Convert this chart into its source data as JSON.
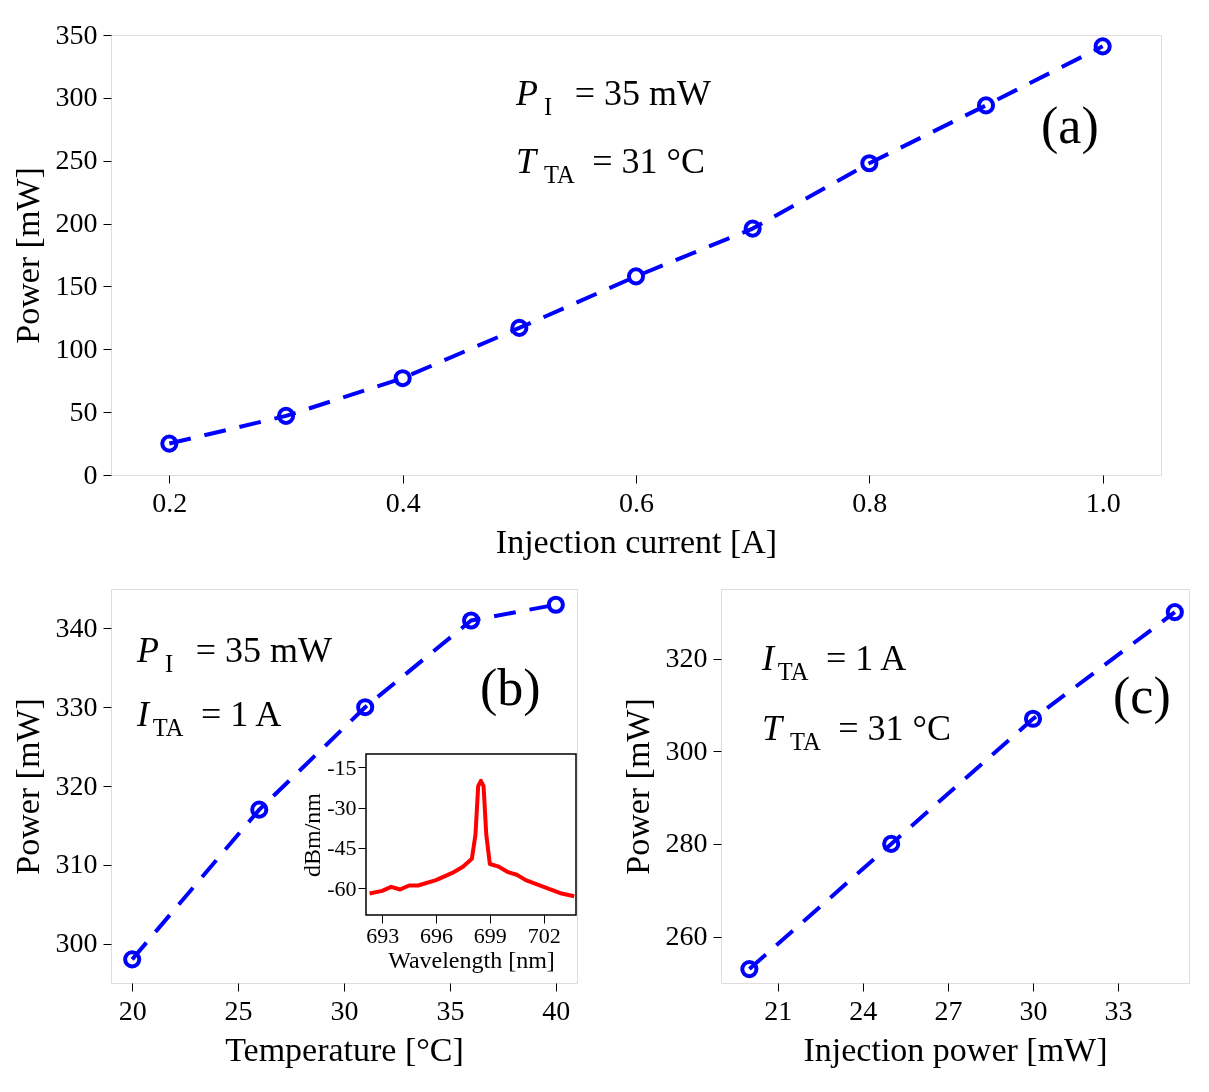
{
  "chart_data": [
    {
      "type": "line",
      "xlabel": "Injection current [A]",
      "ylabel": "Power [mW]",
      "x": [
        0.2,
        0.3,
        0.4,
        0.5,
        0.6,
        0.7,
        0.8,
        0.9,
        1.0
      ],
      "series": [
        {
          "color": "#0000ff",
          "values": [
            25,
            47,
            77,
            117,
            158,
            196,
            248,
            294,
            341
          ]
        }
      ],
      "xlim": [
        0.15,
        1.05
      ],
      "xticks": [
        0.2,
        0.4,
        0.6,
        0.8,
        {
          "value": 1.0,
          "label": "1.0"
        }
      ],
      "ylim": [
        0,
        350
      ],
      "yticks": [
        0,
        50,
        100,
        150,
        200,
        250,
        300,
        350
      ],
      "marker": "circle",
      "line_style": "dashed",
      "grid": false,
      "annotations": [
        "P$_{I}$ = 35 mW",
        "T$_{TA}$ = 31 °C",
        "(a)"
      ]
    },
    {
      "type": "line",
      "xlabel": "Temperature [°C]",
      "ylabel": "Power [mW]",
      "x": [
        20,
        26,
        31,
        36,
        40
      ],
      "series": [
        {
          "color": "#0000ff",
          "values": [
            298,
            317,
            330,
            341,
            343
          ]
        }
      ],
      "xlim": [
        19,
        41
      ],
      "xticks": [
        20,
        25,
        30,
        35,
        40
      ],
      "ylim": [
        295,
        345
      ],
      "yticks": [
        300,
        310,
        320,
        330,
        340
      ],
      "marker": "circle",
      "line_style": "dashed",
      "grid": false,
      "annotations": [
        "P$_{I}$ = 35 mW",
        "I$_{TA}$ = 1 A",
        "(b)"
      ]
    },
    {
      "type": "line",
      "xlabel": "Wavelength [nm]",
      "ylabel": "dBm/nm",
      "x": [
        692.3,
        693,
        693.5,
        694,
        694.5,
        695,
        696,
        697,
        697.5,
        698,
        698.2,
        698.35,
        698.5,
        698.65,
        698.8,
        699,
        699.5,
        700,
        700.5,
        701,
        702,
        703,
        703.7
      ],
      "series": [
        {
          "color": "#ff0000",
          "values": [
            -62,
            -61,
            -59.5,
            -60.5,
            -59,
            -59,
            -57,
            -54,
            -52,
            -49,
            -40,
            -22,
            -20,
            -22,
            -40,
            -51,
            -52,
            -54,
            -55,
            -57,
            -59.5,
            -62,
            -63
          ]
        }
      ],
      "xlim": [
        692.1,
        703.8
      ],
      "xticks": [
        693,
        696,
        699,
        702
      ],
      "ylim": [
        -70,
        -10
      ],
      "yticks": [
        -60,
        -45,
        -30,
        -15
      ],
      "marker": "none",
      "line_style": "solid",
      "grid": false
    },
    {
      "type": "line",
      "xlabel": "Injection power [mW]",
      "ylabel": "Power [mW]",
      "x": [
        20,
        25,
        30,
        35
      ],
      "series": [
        {
          "color": "#0000ff",
          "values": [
            253,
            280,
            307,
            330
          ]
        }
      ],
      "xlim": [
        19,
        35.5
      ],
      "xticks": [
        21,
        24,
        27,
        30,
        33
      ],
      "ylim": [
        250,
        335
      ],
      "yticks": [
        260,
        280,
        300,
        320
      ],
      "marker": "circle",
      "line_style": "dashed",
      "grid": false,
      "annotations": [
        "I$_{TA}$ = 1 A",
        "T$_{TA}$ = 31 °C",
        "(c)"
      ]
    }
  ]
}
